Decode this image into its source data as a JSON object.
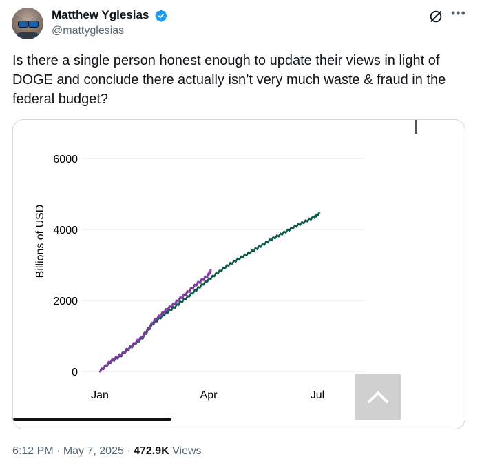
{
  "author": {
    "display_name": "Matthew Yglesias",
    "handle": "@mattyglesias",
    "verified_color": "#1d9bf0"
  },
  "tweet": {
    "text": "Is there a single person honest enough to update their views in light of DOGE and conclude there actually isn’t very much waste & fraud in the federal budget?"
  },
  "meta": {
    "time": "6:12 PM",
    "sep1": " · ",
    "date": "May 7, 2025",
    "sep2": " · ",
    "views": "472.9K",
    "views_label": " Views"
  },
  "chart_data": {
    "type": "line",
    "ylabel": "Billions of USD",
    "xlabel": "",
    "title": "",
    "x_ticks": [
      "Jan",
      "Apr",
      "Jul"
    ],
    "y_ticks": [
      0,
      2000,
      4000,
      6000
    ],
    "ylim": [
      0,
      6000
    ],
    "x_domain_days": [
      0,
      240
    ],
    "grid": true,
    "series": [
      {
        "color": "#0d5a4a",
        "points": [
          [
            0,
            0
          ],
          [
            10,
            260
          ],
          [
            20,
            450
          ],
          [
            30,
            700
          ],
          [
            40,
            950
          ],
          [
            50,
            1350
          ],
          [
            60,
            1600
          ],
          [
            70,
            1820
          ],
          [
            80,
            2050
          ],
          [
            90,
            2300
          ],
          [
            100,
            2550
          ],
          [
            110,
            2780
          ],
          [
            120,
            3000
          ],
          [
            130,
            3180
          ],
          [
            140,
            3350
          ],
          [
            150,
            3530
          ],
          [
            160,
            3720
          ],
          [
            170,
            3880
          ],
          [
            180,
            4050
          ],
          [
            190,
            4200
          ],
          [
            200,
            4350
          ],
          [
            205,
            4450
          ]
        ]
      },
      {
        "color": "#7b3f9e",
        "points": [
          [
            0,
            0
          ],
          [
            10,
            280
          ],
          [
            20,
            480
          ],
          [
            30,
            720
          ],
          [
            40,
            990
          ],
          [
            50,
            1400
          ],
          [
            60,
            1680
          ],
          [
            70,
            1920
          ],
          [
            80,
            2180
          ],
          [
            90,
            2450
          ],
          [
            100,
            2680
          ],
          [
            104,
            2850
          ]
        ]
      }
    ]
  }
}
